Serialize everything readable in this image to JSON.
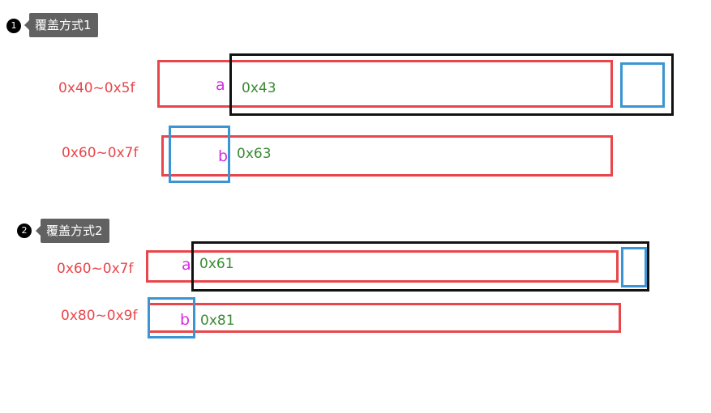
{
  "section1": {
    "number": "1",
    "title": "覆盖方式1",
    "row1": {
      "range": "0x40~0x5f",
      "letter": "a",
      "value": "0x43"
    },
    "row2": {
      "range": "0x60~0x7f",
      "letter": "b",
      "value": "0x63"
    }
  },
  "section2": {
    "number": "2",
    "title": "覆盖方式2",
    "row1": {
      "range": "0x60~0x7f",
      "letter": "a",
      "value": "0x61"
    },
    "row2": {
      "range": "0x80~0x9f",
      "letter": "b",
      "value": "0x81"
    }
  },
  "colors": {
    "red": "#e8464b",
    "black": "#111111",
    "blue": "#3b95d2",
    "magenta": "#d52de0",
    "green": "#3a8a34",
    "tag_bg": "#616161"
  }
}
